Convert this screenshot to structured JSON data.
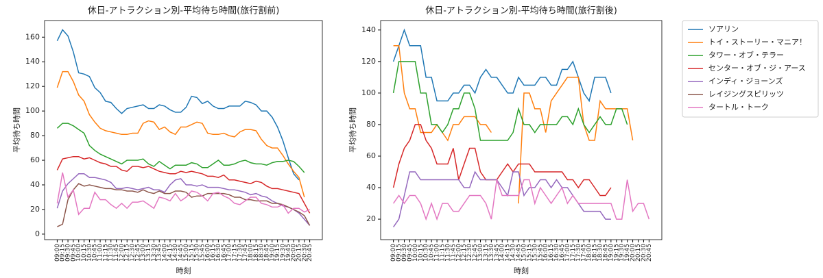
{
  "charts": [
    {
      "chart_data": {
        "type": "line",
        "title": "休日-アトラクション別-平均待ち時間(旅行割前)",
        "xlabel": "時刻",
        "ylabel": "平均待ち時間",
        "categories": [
          "09:00",
          "09:15",
          "09:30",
          "09:45",
          "10:00",
          "10:15",
          "10:30",
          "10:45",
          "11:00",
          "11:15",
          "11:30",
          "11:45",
          "12:00",
          "12:15",
          "12:30",
          "12:45",
          "13:00",
          "13:15",
          "13:30",
          "13:45",
          "14:00",
          "14:15",
          "14:30",
          "14:45",
          "15:00",
          "15:15",
          "15:30",
          "15:45",
          "16:00",
          "16:15",
          "16:30",
          "16:45",
          "17:00",
          "17:15",
          "17:30",
          "17:45",
          "18:00",
          "18:15",
          "18:30",
          "18:45",
          "19:00",
          "19:15",
          "19:30",
          "19:45",
          "20:00",
          "20:15",
          "20:30",
          "20:45"
        ],
        "ylim": [
          -4.5,
          173.5
        ],
        "yticks": [
          0,
          20,
          40,
          60,
          80,
          100,
          120,
          140,
          160
        ],
        "legend": "outside right",
        "series": [
          {
            "name": "ソアリン",
            "color": "#1f77b4",
            "values": [
              157,
              166,
              161,
              148,
              131,
              130,
              128,
              119,
              115,
              108,
              107,
              102,
              98,
              102,
              103,
              104,
              105,
              102,
              102,
              105,
              104,
              101,
              99,
              99,
              103,
              112,
              111,
              106,
              108,
              104,
              102,
              102,
              104,
              104,
              104,
              108,
              107,
              105,
              100,
              100,
              95,
              87,
              76,
              62,
              49,
              44,
              null,
              null
            ]
          },
          {
            "name": "トイ・ストーリー・マニア！",
            "color": "#ff7f0e",
            "values": [
              119,
              132,
              132,
              124,
              113,
              108,
              97,
              91,
              86,
              84,
              83,
              82,
              81,
              81,
              82,
              82,
              90,
              92,
              91,
              85,
              87,
              83,
              81,
              87,
              87,
              89,
              91,
              90,
              82,
              81,
              81,
              82,
              80,
              79,
              83,
              85,
              85,
              84,
              77,
              72,
              70,
              70,
              64,
              57,
              51,
              46,
              30,
              null
            ]
          },
          {
            "name": "タワー・オブ・テラー",
            "color": "#2ca02c",
            "values": [
              86,
              90,
              90,
              88,
              85,
              82,
              72,
              68,
              65,
              63,
              61,
              59,
              57,
              60,
              60,
              60,
              61,
              57,
              55,
              59,
              56,
              53,
              56,
              56,
              56,
              58,
              57,
              54,
              54,
              57,
              60,
              56,
              56,
              57,
              59,
              60,
              58,
              57,
              57,
              56,
              58,
              59,
              59,
              60,
              59,
              55,
              50,
              null
            ]
          },
          {
            "name": "センター・オブ・ジ・アース",
            "color": "#d62728",
            "values": [
              52,
              61,
              62,
              63,
              63,
              61,
              62,
              60,
              58,
              57,
              55,
              55,
              52,
              51,
              55,
              55,
              54,
              55,
              53,
              51,
              50,
              49,
              49,
              51,
              50,
              51,
              50,
              49,
              47,
              47,
              46,
              48,
              44,
              44,
              43,
              42,
              41,
              43,
              42,
              39,
              37,
              37,
              36,
              35,
              34,
              33,
              25,
              17
            ]
          },
          {
            "name": "インディ・ジョーンズ",
            "color": "#9467bd",
            "values": [
              21,
              35,
              41,
              45,
              49,
              49,
              46,
              46,
              45,
              44,
              42,
              37,
              37,
              38,
              37,
              36,
              37,
              38,
              36,
              36,
              34,
              40,
              44,
              45,
              40,
              40,
              39,
              40,
              38,
              38,
              38,
              37,
              36,
              36,
              35,
              34,
              32,
              33,
              31,
              30,
              27,
              25,
              23,
              22,
              20,
              17,
              12,
              7
            ]
          },
          {
            "name": "レイジングスピリッツ",
            "color": "#8c564b",
            "values": [
              6,
              8,
              28,
              36,
              41,
              39,
              40,
              39,
              38,
              37,
              37,
              36,
              36,
              35,
              35,
              34,
              36,
              34,
              33,
              35,
              33,
              33,
              35,
              35,
              34,
              30,
              31,
              31,
              33,
              33,
              33,
              33,
              32,
              30,
              30,
              28,
              28,
              27,
              27,
              27,
              25,
              25,
              24,
              22,
              20,
              18,
              15,
              7
            ]
          },
          {
            "name": "タートル・トーク",
            "color": "#e377c2",
            "values": [
              25,
              50,
              30,
              36,
              16,
              21,
              21,
              34,
              28,
              28,
              24,
              21,
              25,
              21,
              26,
              26,
              27,
              24,
              21,
              30,
              29,
              27,
              33,
              27,
              30,
              35,
              34,
              31,
              27,
              33,
              34,
              31,
              29,
              25,
              24,
              27,
              30,
              30,
              25,
              24,
              22,
              22,
              24,
              17,
              21,
              21,
              18,
              20
            ]
          }
        ]
      }
    },
    {
      "chart_data": {
        "type": "line",
        "title": "休日-アトラクション別-平均待ち時間(旅行割後)",
        "xlabel": "時刻",
        "ylabel": "平均待ち時間",
        "categories": [
          "09:00",
          "09:15",
          "09:30",
          "09:45",
          "10:00",
          "10:15",
          "10:30",
          "10:45",
          "11:00",
          "11:15",
          "11:30",
          "11:45",
          "12:00",
          "12:15",
          "12:30",
          "12:45",
          "13:00",
          "13:15",
          "13:30",
          "13:45",
          "14:00",
          "14:15",
          "14:30",
          "14:45",
          "15:00",
          "15:15",
          "15:30",
          "15:45",
          "16:00",
          "16:15",
          "16:30",
          "16:45",
          "17:00",
          "17:15",
          "17:30",
          "17:45",
          "18:00",
          "18:15",
          "18:30",
          "18:45",
          "19:00",
          "19:15",
          "19:30",
          "19:45",
          "20:00",
          "20:15",
          "20:30",
          "20:45"
        ],
        "ylim": [
          7,
          146
        ],
        "yticks": [
          20,
          40,
          60,
          80,
          100,
          120,
          140
        ],
        "series": [
          {
            "color": "#1f77b4",
            "values": [
              120,
              130,
              140,
              130,
              130,
              130,
              110,
              110,
              95,
              95,
              95,
              100,
              100,
              105,
              105,
              100,
              110,
              115,
              110,
              110,
              105,
              100,
              100,
              110,
              105,
              105,
              105,
              110,
              110,
              105,
              105,
              115,
              115,
              120,
              110,
              100,
              95,
              110,
              110,
              110,
              100,
              null,
              null,
              null,
              null,
              null,
              null,
              null
            ]
          },
          {
            "color": "#ff7f0e",
            "values": [
              130,
              130,
              100,
              90,
              90,
              75,
              75,
              75,
              80,
              75,
              70,
              80,
              80,
              85,
              85,
              85,
              80,
              80,
              75,
              null,
              null,
              null,
              null,
              30,
              100,
              100,
              90,
              90,
              75,
              95,
              100,
              105,
              110,
              110,
              110,
              80,
              70,
              70,
              95,
              90,
              90,
              90,
              90,
              90,
              70,
              null,
              null,
              null
            ]
          },
          {
            "color": "#2ca02c",
            "values": [
              100,
              120,
              120,
              120,
              120,
              100,
              100,
              80,
              80,
              75,
              80,
              90,
              90,
              100,
              100,
              90,
              70,
              70,
              70,
              70,
              70,
              70,
              75,
              90,
              80,
              80,
              75,
              80,
              80,
              80,
              80,
              85,
              85,
              80,
              90,
              80,
              75,
              80,
              85,
              80,
              80,
              90,
              90,
              80,
              null,
              null,
              null,
              null
            ]
          },
          {
            "color": "#d62728",
            "values": [
              40,
              55,
              65,
              70,
              80,
              80,
              70,
              65,
              55,
              55,
              55,
              65,
              45,
              55,
              65,
              65,
              50,
              45,
              45,
              45,
              50,
              55,
              50,
              55,
              55,
              55,
              50,
              50,
              50,
              50,
              50,
              50,
              45,
              45,
              40,
              45,
              45,
              40,
              35,
              35,
              40,
              null,
              null,
              null,
              null,
              null,
              null,
              null
            ]
          },
          {
            "color": "#9467bd",
            "values": [
              15,
              20,
              35,
              50,
              50,
              45,
              45,
              45,
              45,
              45,
              45,
              45,
              45,
              40,
              40,
              50,
              45,
              45,
              45,
              45,
              40,
              35,
              50,
              50,
              35,
              40,
              40,
              45,
              45,
              40,
              45,
              40,
              40,
              35,
              30,
              25,
              25,
              25,
              25,
              20,
              20,
              null,
              null,
              null,
              null,
              null,
              null,
              null
            ]
          },
          {
            "color": "#8c564b",
            "values": [
              null,
              null,
              null,
              null,
              null,
              null,
              null,
              null,
              null,
              null,
              null,
              null,
              null,
              null,
              null,
              null,
              null,
              null,
              null,
              null,
              null,
              null,
              null,
              null,
              null,
              null,
              null,
              null,
              null,
              null,
              null,
              null,
              null,
              null,
              null,
              null,
              null,
              null,
              null,
              null,
              null,
              null,
              null,
              null,
              null,
              null,
              null,
              null
            ]
          },
          {
            "color": "#e377c2",
            "values": [
              30,
              35,
              30,
              35,
              35,
              30,
              20,
              30,
              20,
              30,
              30,
              25,
              25,
              30,
              35,
              35,
              35,
              30,
              20,
              45,
              35,
              35,
              35,
              35,
              45,
              45,
              30,
              40,
              35,
              30,
              35,
              40,
              30,
              35,
              30,
              30,
              30,
              30,
              30,
              30,
              30,
              20,
              20,
              45,
              25,
              30,
              30,
              20
            ]
          }
        ]
      }
    }
  ]
}
